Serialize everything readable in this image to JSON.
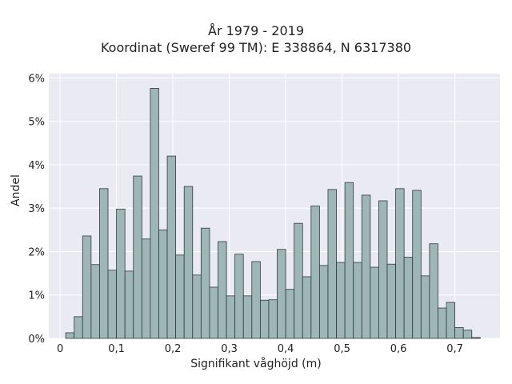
{
  "chart_data": {
    "type": "bar",
    "title": "År 1979 - 2019",
    "subtitle": "Koordinat (Sweref 99 TM): E 338864, N 6317380",
    "xlabel": "Signifikant våghöjd (m)",
    "ylabel": "Andel",
    "xlim": [
      -0.02,
      0.78
    ],
    "ylim": [
      0,
      6.1
    ],
    "x_ticks": [
      0,
      0.1,
      0.2,
      0.3,
      0.4,
      0.5,
      0.6,
      0.7
    ],
    "x_tick_labels": [
      "0",
      "0,1",
      "0,2",
      "0,3",
      "0,4",
      "0,5",
      "0,6",
      "0,7"
    ],
    "y_ticks": [
      0,
      1,
      2,
      3,
      4,
      5,
      6
    ],
    "y_tick_labels": [
      "0%",
      "1%",
      "2%",
      "3%",
      "4%",
      "5%",
      "6%"
    ],
    "grid": true,
    "bin_width": 0.015,
    "bin_starts": [
      0.01,
      0.025,
      0.04,
      0.055,
      0.07,
      0.085,
      0.1,
      0.115,
      0.13,
      0.145,
      0.16,
      0.175,
      0.19,
      0.205,
      0.22,
      0.235,
      0.25,
      0.265,
      0.28,
      0.295,
      0.31,
      0.325,
      0.34,
      0.355,
      0.37,
      0.385,
      0.4,
      0.415,
      0.43,
      0.445,
      0.46,
      0.475,
      0.49,
      0.505,
      0.52,
      0.535,
      0.55,
      0.565,
      0.58,
      0.595,
      0.61,
      0.625,
      0.64,
      0.655,
      0.67,
      0.685,
      0.7,
      0.715,
      0.73
    ],
    "values": [
      0.13,
      0.5,
      2.36,
      1.7,
      3.45,
      1.57,
      2.98,
      1.55,
      3.74,
      2.29,
      5.76,
      2.5,
      4.2,
      1.92,
      3.5,
      1.46,
      2.54,
      1.18,
      2.23,
      0.98,
      1.94,
      0.98,
      1.77,
      0.88,
      0.89,
      2.05,
      1.13,
      2.65,
      1.42,
      3.05,
      1.68,
      3.43,
      1.75,
      3.59,
      1.75,
      3.3,
      1.64,
      3.17,
      1.71,
      3.45,
      1.87,
      3.41,
      1.44,
      2.18,
      0.7,
      0.83,
      0.25,
      0.19,
      0.02
    ],
    "colors": {
      "bar_fill": "#9fb6b6",
      "bar_edge": "#2f3a3a",
      "plot_bg": "#eaeaf2",
      "grid": "#ffffff"
    }
  }
}
